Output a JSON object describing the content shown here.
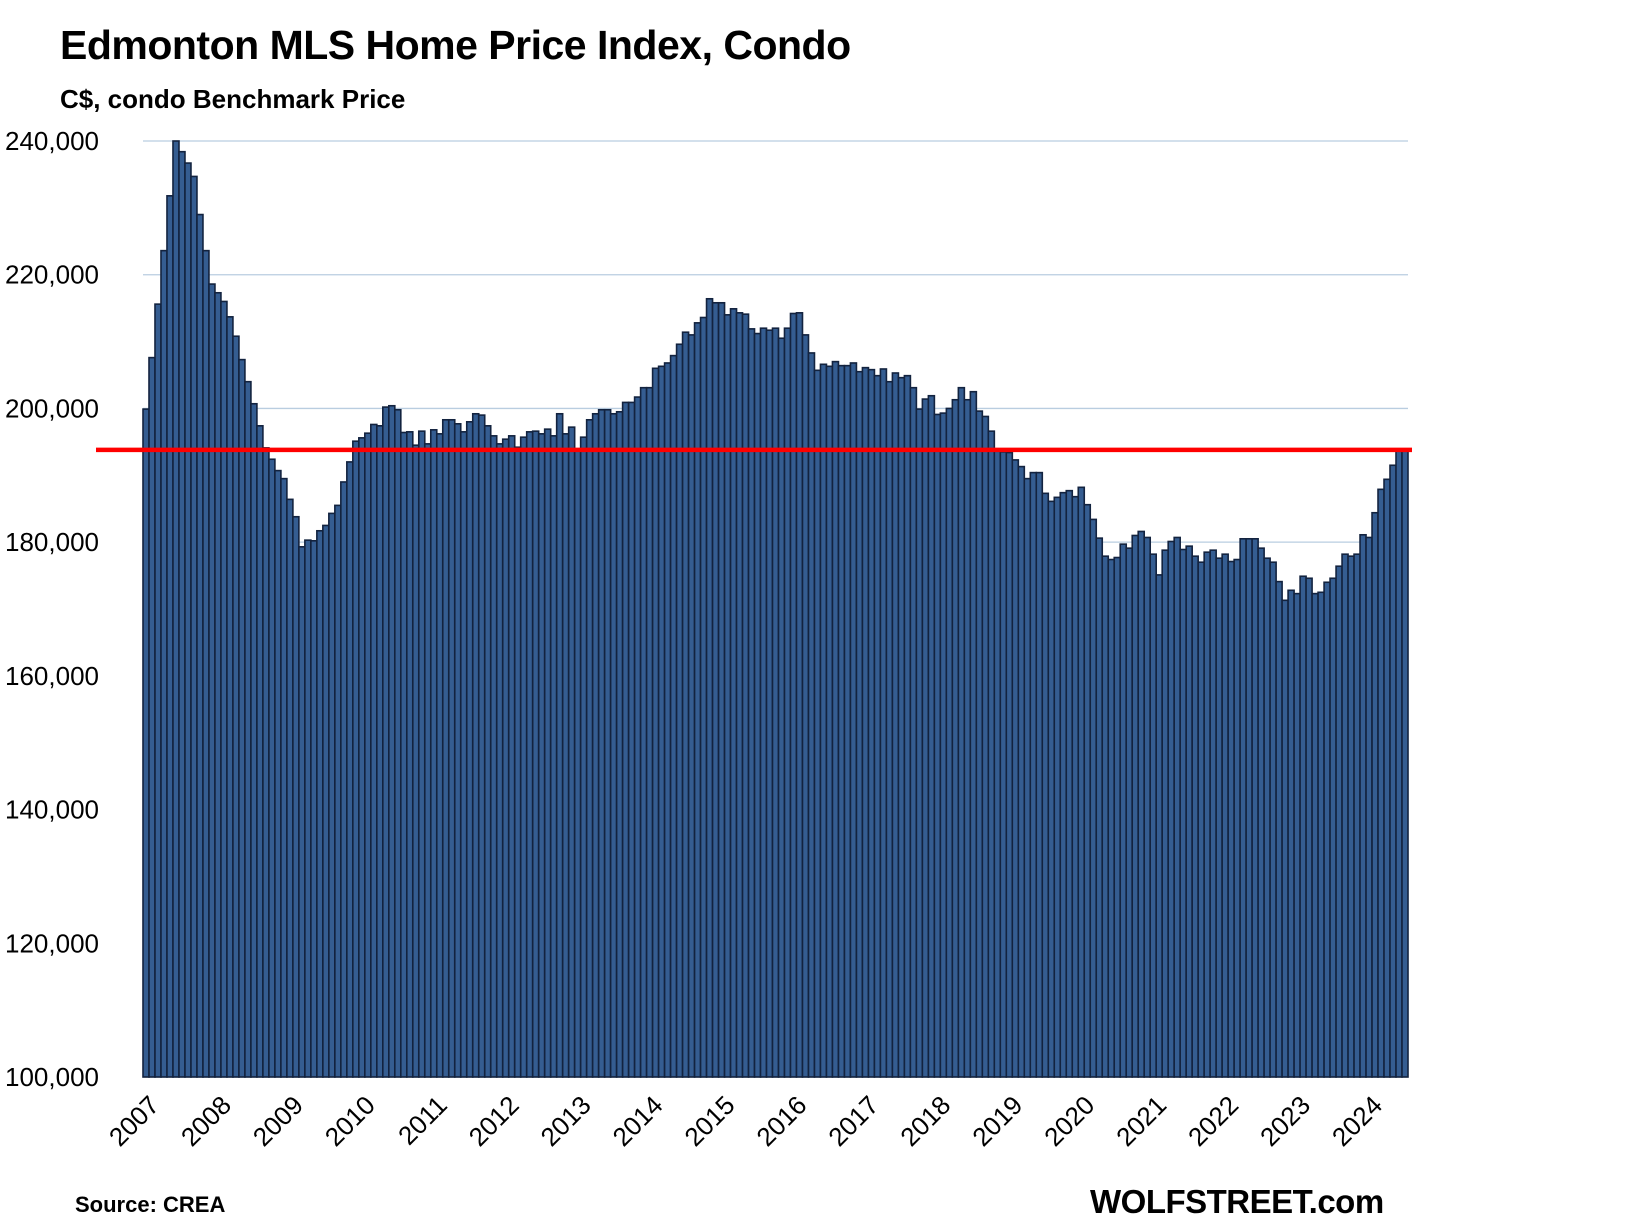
{
  "chart_data": {
    "type": "bar",
    "title": "Edmonton MLS Home Price Index, Condo",
    "subtitle": "C$, condo Benchmark Price",
    "xlabel": "",
    "ylabel": "",
    "ylim": [
      100000,
      240000
    ],
    "y_ticks": [
      100000,
      120000,
      140000,
      160000,
      180000,
      200000,
      220000,
      240000
    ],
    "y_tick_labels": [
      "100,000",
      "120,000",
      "140,000",
      "160,000",
      "180,000",
      "200,000",
      "220,000",
      "240,000"
    ],
    "x_tick_labels": [
      "2007",
      "2008",
      "2009",
      "2010",
      "2011",
      "2012",
      "2013",
      "2014",
      "2015",
      "2016",
      "2017",
      "2018",
      "2019",
      "2020",
      "2021",
      "2022",
      "2023",
      "2024"
    ],
    "x_start": "2007-01",
    "frequency": "monthly",
    "grid": true,
    "legend": "none",
    "bar_color": "#355d91",
    "bar_edge_color": "#13233f",
    "grid_color": "#b9cde0",
    "reference_line": {
      "value": 193800,
      "color": "#ff0000"
    },
    "values": [
      199900,
      207600,
      215600,
      223600,
      231800,
      240000,
      238400,
      236700,
      234700,
      229000,
      223600,
      218600,
      217300,
      216000,
      213700,
      210800,
      207300,
      204000,
      200700,
      197400,
      194100,
      192400,
      190700,
      189500,
      186400,
      183800,
      179300,
      180300,
      180200,
      181700,
      182500,
      184300,
      185500,
      189000,
      192000,
      195100,
      195600,
      196300,
      197600,
      197400,
      200200,
      200400,
      199800,
      196400,
      196500,
      194500,
      196600,
      194700,
      196800,
      196200,
      198300,
      198300,
      197700,
      196500,
      198000,
      199200,
      199000,
      197400,
      195900,
      194700,
      195400,
      195900,
      194200,
      195700,
      196500,
      196600,
      196200,
      196900,
      195900,
      199200,
      196200,
      197200,
      193800,
      195700,
      198300,
      199200,
      199800,
      199800,
      199200,
      199500,
      200900,
      200900,
      201700,
      203100,
      203100,
      206000,
      206300,
      206800,
      207900,
      209600,
      211400,
      211000,
      212800,
      213600,
      216400,
      215800,
      215800,
      214000,
      214900,
      214300,
      214100,
      211900,
      211200,
      212000,
      211700,
      212000,
      210500,
      212000,
      214200,
      214300,
      211000,
      208300,
      205700,
      206600,
      206300,
      207000,
      206400,
      206400,
      206800,
      205500,
      206100,
      205800,
      204900,
      205900,
      204000,
      205300,
      204600,
      204900,
      203100,
      199900,
      201400,
      201900,
      199100,
      199300,
      200000,
      201300,
      203100,
      201300,
      202500,
      199600,
      198800,
      196600,
      193600,
      193500,
      193400,
      192300,
      191300,
      189500,
      190400,
      190400,
      187300,
      186100,
      186700,
      187400,
      187700,
      186800,
      188200,
      185600,
      183400,
      180600,
      177900,
      177400,
      177700,
      179700,
      179100,
      181000,
      181600,
      180700,
      178200,
      175100,
      178800,
      180100,
      180700,
      178900,
      179400,
      177900,
      177000,
      178500,
      178800,
      177600,
      178200,
      177100,
      177400,
      180500,
      180500,
      180500,
      179100,
      177600,
      177000,
      174100,
      171300,
      172800,
      172300,
      174900,
      174600,
      172300,
      172500,
      174000,
      174600,
      176400,
      178200,
      177900,
      178200,
      181100,
      180700,
      184400,
      187900,
      189400,
      191500,
      193600,
      193600
    ]
  },
  "footer": {
    "source": "Source: CREA",
    "brand": "WOLFSTREET.com"
  }
}
